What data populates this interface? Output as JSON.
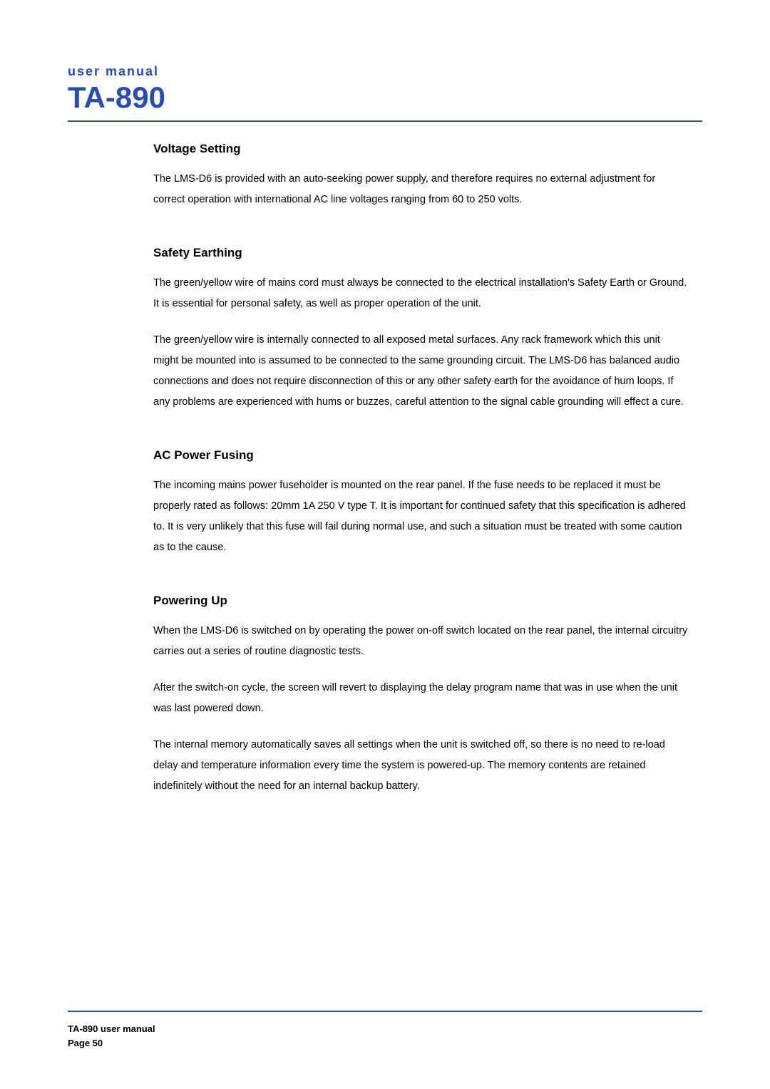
{
  "header": {
    "small": "user manual",
    "large": "TA-890"
  },
  "sections": [
    {
      "title": "Voltage Setting",
      "paras": [
        "The LMS-D6 is provided with an auto-seeking power supply, and therefore requires no external adjustment for correct operation with international AC line voltages ranging from 60 to 250 volts."
      ]
    },
    {
      "title": "Safety Earthing",
      "paras": [
        "The green/yellow wire of mains cord must always be connected to the electrical installation's Safety Earth or Ground. It is essential for personal safety, as well as proper operation of the unit.",
        "The green/yellow wire is internally connected to all exposed metal surfaces. Any rack framework which this unit might be mounted into is assumed to be connected to the same grounding circuit. The LMS-D6 has balanced audio connections and does not require disconnection of this or any other safety earth for the avoidance of hum loops. If any problems are experienced with hums or buzzes, careful attention to the signal cable grounding will effect a cure."
      ]
    },
    {
      "title": "AC Power Fusing",
      "paras": [
        "The incoming mains power fuseholder is mounted on the rear panel. If the fuse needs to be replaced it must be properly rated as follows: 20mm 1A 250 V type T. It is important for continued safety that this specification is adhered to. It is very unlikely that this fuse will fail during normal use, and such a situation must be treated with some caution as to the cause."
      ]
    },
    {
      "title": "Powering Up",
      "paras": [
        "When the LMS-D6 is switched on by operating the power on-off switch located on the rear panel, the internal circuitry carries out a series of routine diagnostic tests.",
        "After the switch-on cycle, the screen will revert to displaying the delay program name that was in use when the unit was last powered down.",
        "The internal memory automatically saves all settings when the unit is switched off, so there is no need to re-load delay and temperature information every time the system is powered-up. The memory contents are retained indefinitely without the need for an internal backup battery."
      ]
    }
  ],
  "footer": {
    "line1": "TA-890 user manual",
    "line2": "Page 50"
  },
  "colors": {
    "accent": "#2a4db0",
    "text": "#000000",
    "background": "#ffffff"
  }
}
